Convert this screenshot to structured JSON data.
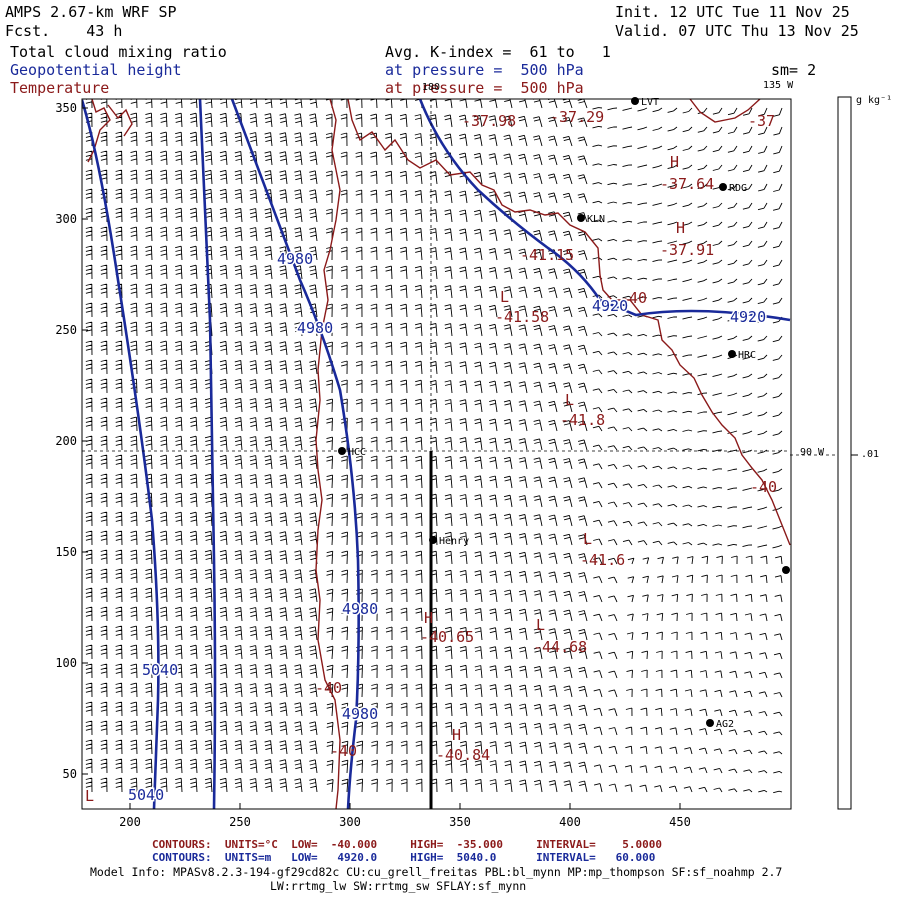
{
  "header": {
    "model_title": "AMPS 2.67-km WRF SP",
    "forecast": "Fcst.    43 h",
    "init": "Init. 12 UTC Tue 11 Nov 25",
    "valid": "Valid. 07 UTC Thu 13 Nov 25",
    "field1": "Total cloud mixing ratio",
    "field2": "Geopotential height",
    "field3": "Temperature",
    "avg_line": "Avg. K-index =  61 to   1",
    "pressure1": "at pressure =  500 hPa",
    "pressure2": "at pressure =  500 hPa",
    "smoothing": "sm= 2"
  },
  "colorbar": {
    "unit": "g kg⁻¹",
    "value_label": ".01"
  },
  "map": {
    "x_ticks": [
      "200",
      "250",
      "300",
      "350",
      "400",
      "450"
    ],
    "y_ticks": [
      "350",
      "300",
      "250",
      "200",
      "150",
      "100",
      "50"
    ],
    "lon_labels": {
      "top": "180",
      "right_top": "135 W",
      "right_mid": "90 W"
    },
    "stations": [
      {
        "name": "LVT"
      },
      {
        "name": "RDG"
      },
      {
        "name": "KLN"
      },
      {
        "name": "HRC"
      },
      {
        "name": "HCC"
      },
      {
        "name": "Henry"
      },
      {
        "name": "AG2"
      },
      {
        "name": ""
      }
    ],
    "temperature_labels": [
      "-37.98",
      "-37.29",
      "-37",
      "-37.64",
      "-37.91",
      "-41.15",
      "-40",
      "-41.58",
      "-41.8",
      "-40",
      "-41.6",
      "-40.65",
      "-44.68",
      "-40",
      "-40",
      "-40.84"
    ],
    "height_labels": [
      "4980",
      "4980",
      "4920",
      "4920",
      "4980",
      "4980",
      "5040",
      "5040"
    ],
    "extremum_labels": [
      "H",
      "H",
      "L",
      "L",
      "L",
      "H",
      "L",
      "H",
      "L"
    ]
  },
  "footer": {
    "temp_contours": "CONTOURS:  UNITS=°C  LOW=  -40.000     HIGH=  -35.000     INTERVAL=    5.0000",
    "height_contours": "CONTOURS:  UNITS=m   LOW=   4920.0     HIGH=  5040.0      INTERVAL=   60.000",
    "model_info1": "Model Info: MPASv8.2.3-194-gf29cd82c CU:cu_grell_freitas PBL:bl_mynn MP:mp_thompson SF:sf_noahmp 2.7",
    "model_info2": "LW:rrtmg_lw SW:rrtmg_sw SFLAY:sf_mynn"
  },
  "colors": {
    "temperature": "#8b1a1a",
    "height": "#1a2a9a",
    "wind_barbs": "#000000"
  }
}
